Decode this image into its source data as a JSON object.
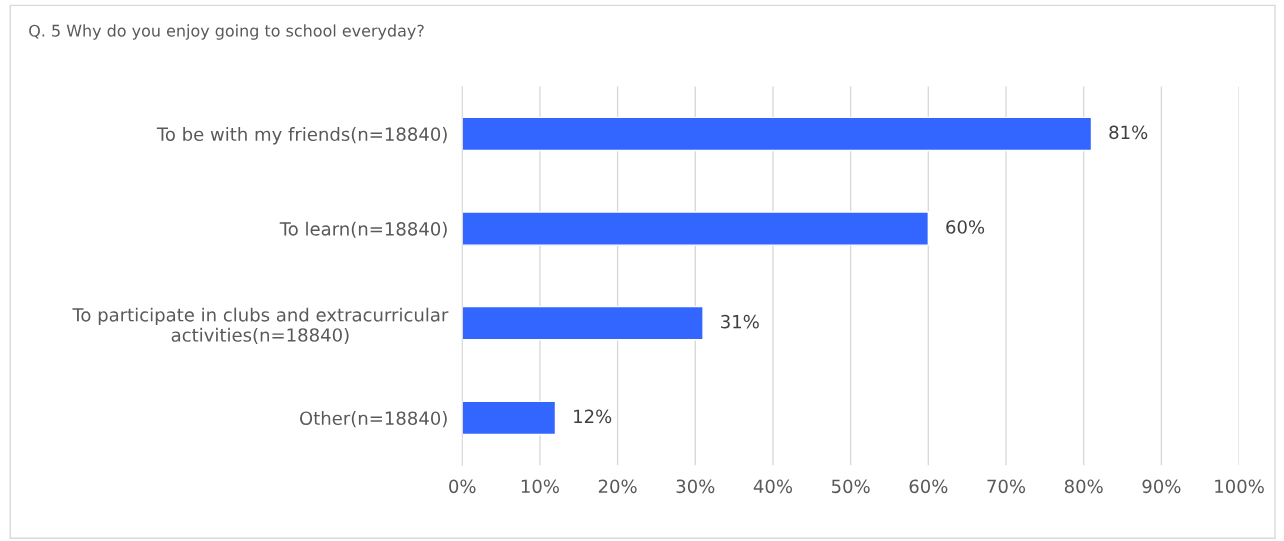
{
  "chart_data": {
    "type": "bar",
    "orientation": "horizontal",
    "title": "Q. 5 Why do you enjoy going to school everyday?",
    "categories": [
      "To be with my friends(n=18840)",
      "To learn(n=18840)",
      "To participate in clubs and extracurricular\nactivities(n=18840)",
      "Other(n=18840)"
    ],
    "values": [
      81,
      60,
      31,
      12
    ],
    "value_labels": [
      "81%",
      "60%",
      "31%",
      "12%"
    ],
    "color": "#3366ff",
    "xlim": [
      0,
      100
    ],
    "xticks": [
      {
        "value": 0,
        "label": "0%"
      },
      {
        "value": 10,
        "label": "10%"
      },
      {
        "value": 20,
        "label": "20%"
      },
      {
        "value": 30,
        "label": "30%"
      },
      {
        "value": 40,
        "label": "40%"
      },
      {
        "value": 50,
        "label": "50%"
      },
      {
        "value": 60,
        "label": "60%"
      },
      {
        "value": 70,
        "label": "70%"
      },
      {
        "value": 80,
        "label": "80%"
      },
      {
        "value": 90,
        "label": "90%"
      },
      {
        "value": 100,
        "label": "100%"
      }
    ],
    "grid": "x"
  }
}
